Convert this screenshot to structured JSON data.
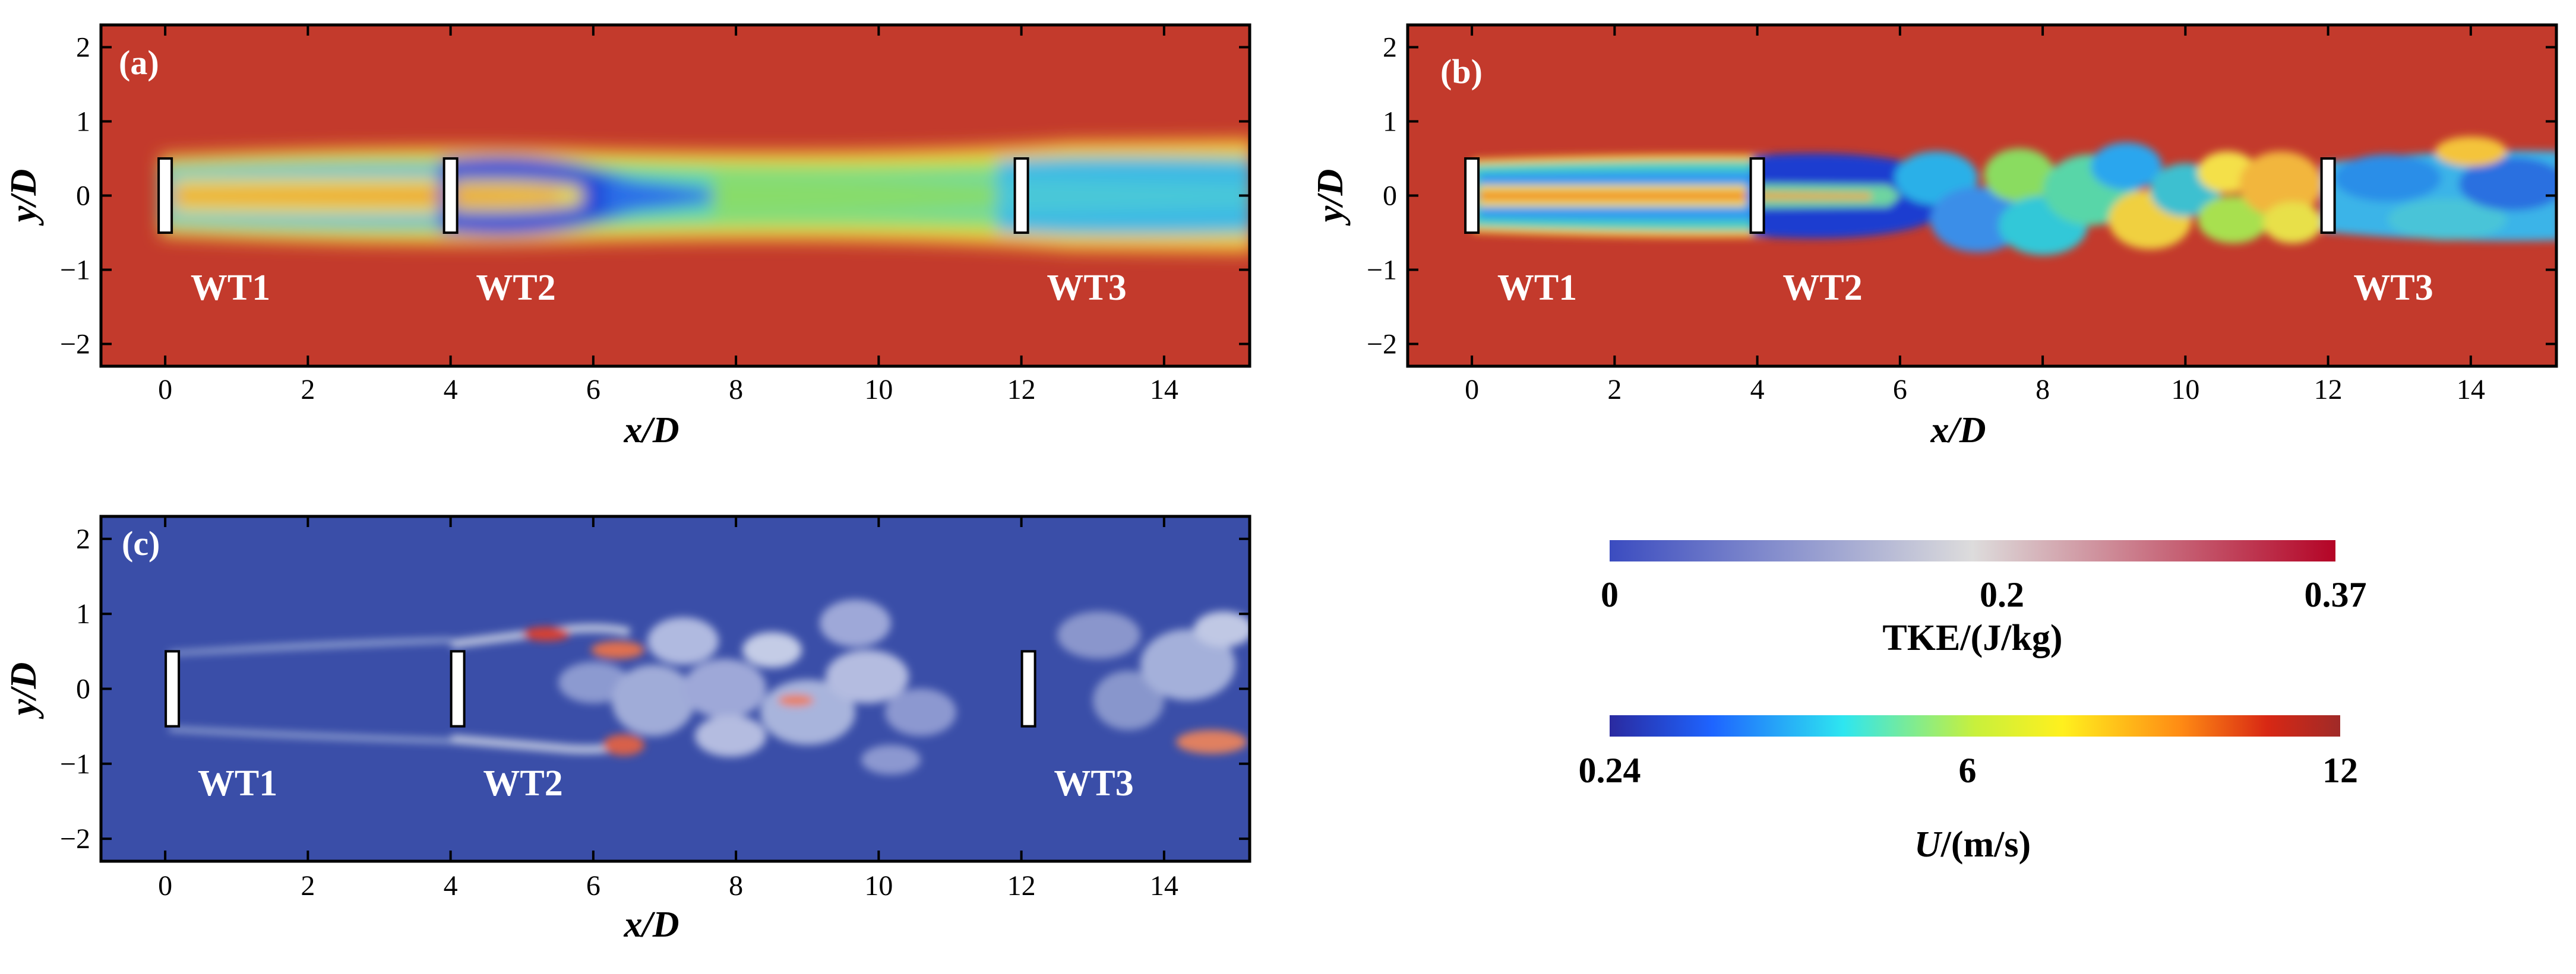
{
  "chart_data": [
    {
      "type": "heatmap",
      "panel": "(a)",
      "field": "U",
      "xlabel": "x/D",
      "ylabel": "y/D",
      "xlim": [
        -0.9,
        15.2
      ],
      "ylim": [
        -2.3,
        2.3
      ],
      "xticks": [
        0,
        2,
        4,
        6,
        8,
        10,
        12,
        14
      ],
      "yticks": [
        -2,
        -1,
        0,
        1,
        2
      ],
      "turbines": [
        {
          "label": "WT1",
          "x": 0
        },
        {
          "label": "WT2",
          "x": 4
        },
        {
          "label": "WT3",
          "x": 12
        }
      ],
      "wake": "smooth",
      "grid": false
    },
    {
      "type": "heatmap",
      "panel": "(b)",
      "field": "U",
      "xlabel": "x/D",
      "ylabel": "y/D",
      "xlim": [
        -0.9,
        15.2
      ],
      "ylim": [
        -2.3,
        2.3
      ],
      "xticks": [
        0,
        2,
        4,
        6,
        8,
        10,
        12,
        14
      ],
      "yticks": [
        -2,
        -1,
        0,
        1,
        2
      ],
      "turbines": [
        {
          "label": "WT1",
          "x": 0
        },
        {
          "label": "WT2",
          "x": 4
        },
        {
          "label": "WT3",
          "x": 12
        }
      ],
      "wake": "turbulent",
      "grid": false
    },
    {
      "type": "heatmap",
      "panel": "(c)",
      "field": "TKE",
      "xlabel": "x/D",
      "ylabel": "y/D",
      "xlim": [
        -0.9,
        15.2
      ],
      "ylim": [
        -2.3,
        2.3
      ],
      "xticks": [
        0,
        2,
        4,
        6,
        8,
        10,
        12,
        14
      ],
      "yticks": [
        -2,
        -1,
        0,
        1,
        2
      ],
      "turbines": [
        {
          "label": "WT1",
          "x": 0
        },
        {
          "label": "WT2",
          "x": 4
        },
        {
          "label": "WT3",
          "x": 12
        }
      ],
      "wake": "turbulent",
      "grid": false
    }
  ],
  "colorbars": [
    {
      "name": "TKE",
      "label": "TKE/(J/kg)",
      "ticks": [
        {
          "value": 0,
          "label": "0"
        },
        {
          "value": 0.2,
          "label": "0.2"
        },
        {
          "value": 0.37,
          "label": "0.37"
        }
      ],
      "range": [
        0,
        0.37
      ],
      "colors": [
        "#3b4cc0",
        "#dddcdc",
        "#b40426"
      ]
    },
    {
      "name": "U",
      "label_italic": "U",
      "label_rest": "/(m/s)",
      "ticks": [
        {
          "value": 0.24,
          "label": "0.24"
        },
        {
          "value": 6,
          "label": "6"
        },
        {
          "value": 12,
          "label": "12"
        }
      ],
      "range": [
        0.24,
        12
      ],
      "colors": [
        "#2a2aa0",
        "#1e64ff",
        "#2ee6f0",
        "#c8f03c",
        "#fff01e",
        "#ff8c14",
        "#d82814",
        "#a02a28"
      ]
    }
  ]
}
